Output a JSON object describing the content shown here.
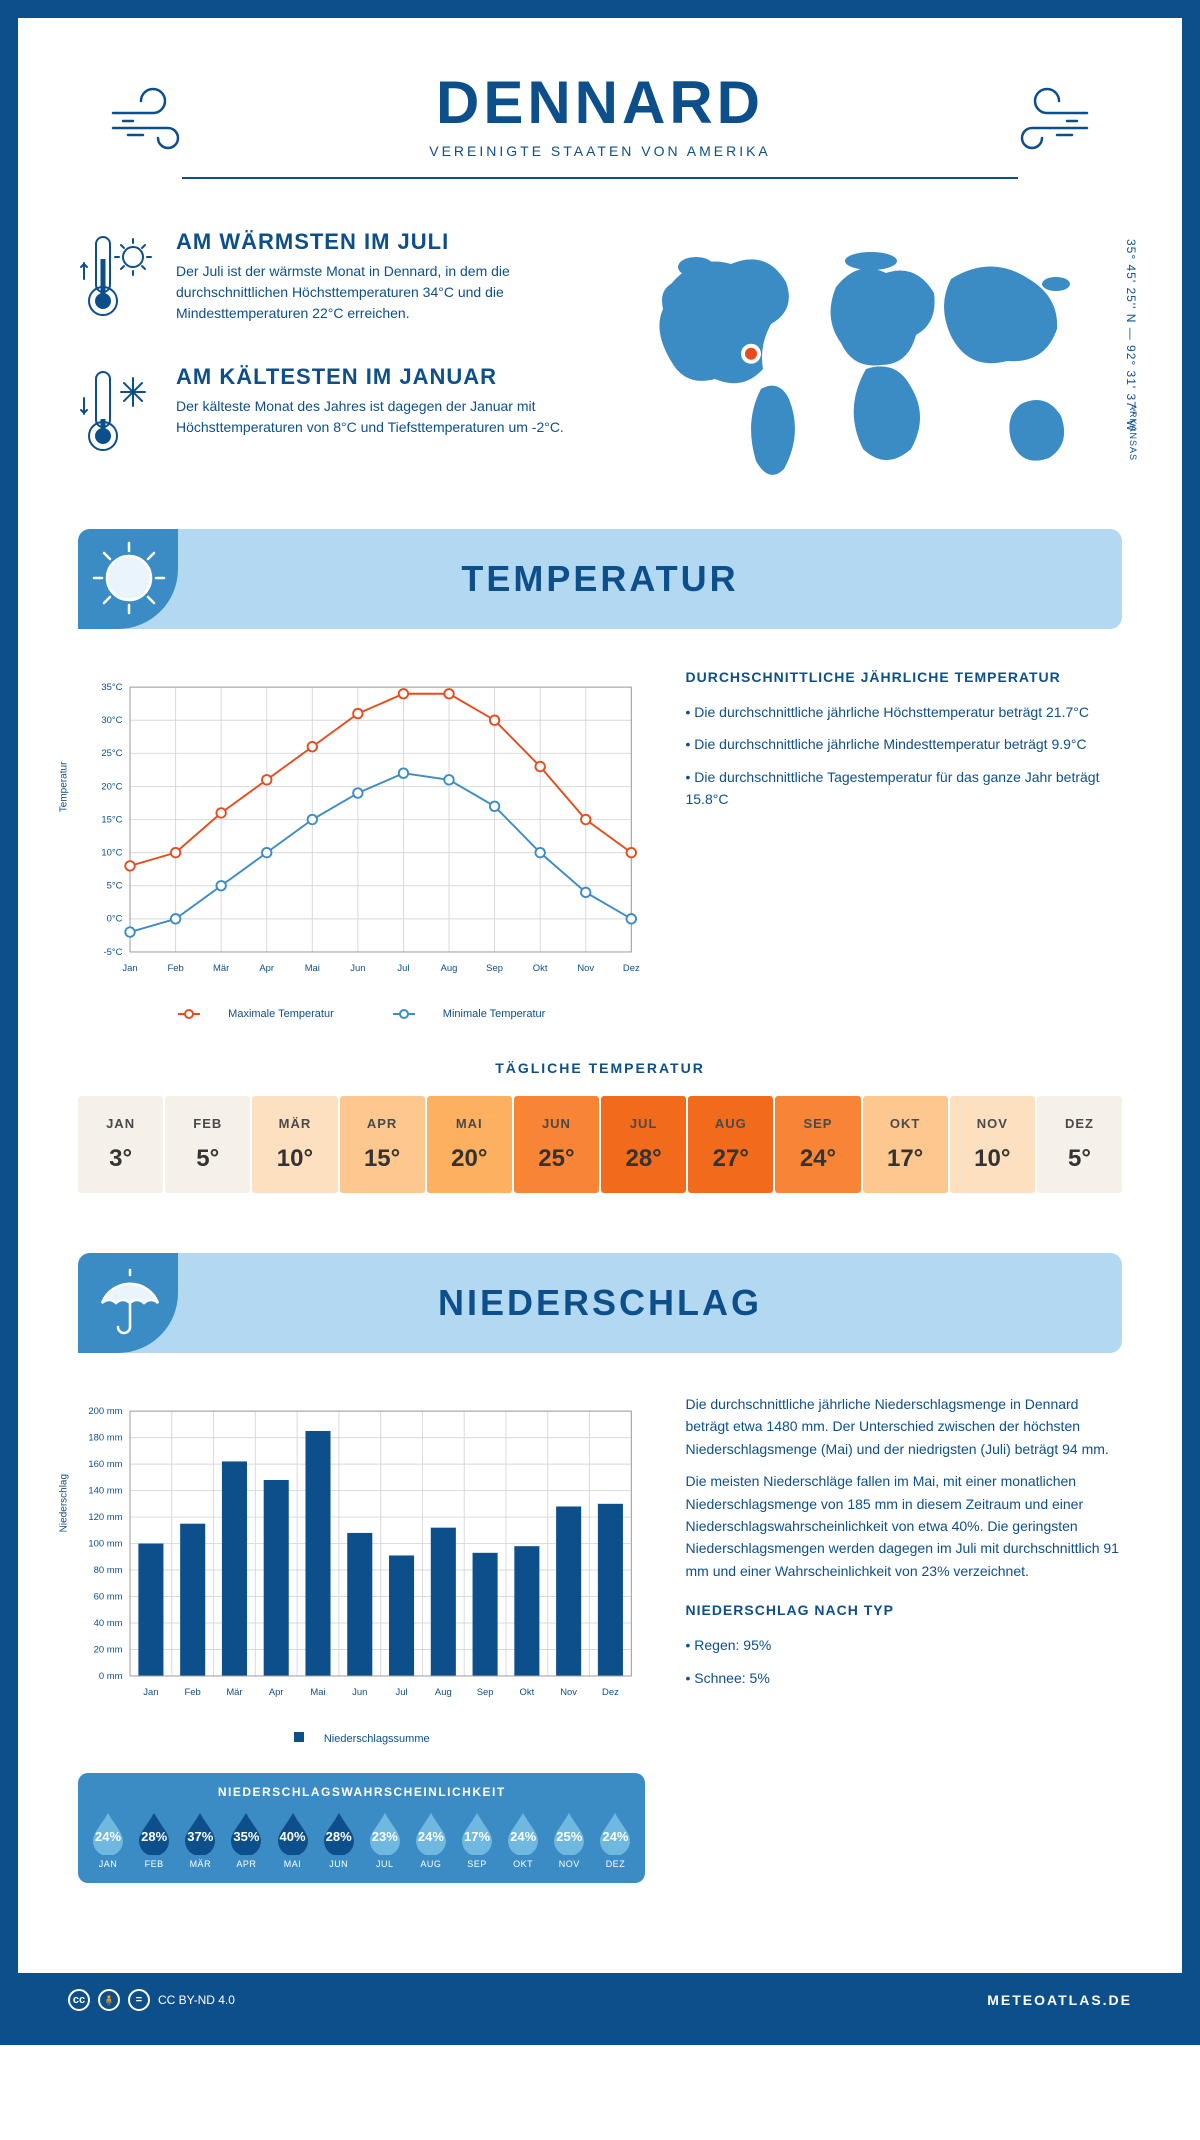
{
  "header": {
    "title": "DENNARD",
    "subtitle": "VEREINIGTE STAATEN VON AMERIKA",
    "coords": "35° 45' 25'' N — 92° 31' 37'' W",
    "state": "ARKANSAS"
  },
  "warm": {
    "title": "AM WÄRMSTEN IM JULI",
    "text": "Der Juli ist der wärmste Monat in Dennard, in dem die durchschnittlichen Höchsttemperaturen 34°C und die Mindesttemperaturen 22°C erreichen."
  },
  "cold": {
    "title": "AM KÄLTESTEN IM JANUAR",
    "text": "Der kälteste Monat des Jahres ist dagegen der Januar mit Höchsttemperaturen von 8°C und Tiefsttemperaturen um -2°C."
  },
  "map_marker": {
    "cx_pct": 26,
    "cy_pct": 48
  },
  "temp_section": {
    "banner": "TEMPERATUR",
    "facts_title": "DURCHSCHNITTLICHE JÄHRLICHE TEMPERATUR",
    "facts": [
      "• Die durchschnittliche jährliche Höchsttemperatur beträgt 21.7°C",
      "• Die durchschnittliche jährliche Mindesttemperatur beträgt 9.9°C",
      "• Die durchschnittliche Tagestemperatur für das ganze Jahr beträgt 15.8°C"
    ],
    "chart": {
      "type": "line",
      "ylabel": "Temperatur",
      "months": [
        "Jan",
        "Feb",
        "Mär",
        "Apr",
        "Mai",
        "Jun",
        "Jul",
        "Aug",
        "Sep",
        "Okt",
        "Nov",
        "Dez"
      ],
      "ylim": [
        -5,
        35
      ],
      "ytick_step": 5,
      "series": [
        {
          "name": "Maximale Temperatur",
          "color": "#e74c1e",
          "values": [
            8,
            10,
            16,
            21,
            26,
            31,
            34,
            34,
            30,
            23,
            15,
            10
          ]
        },
        {
          "name": "Minimale Temperatur",
          "color": "#3b8cc4",
          "values": [
            -2,
            0,
            5,
            10,
            15,
            19,
            22,
            21,
            17,
            10,
            4,
            0
          ]
        }
      ],
      "grid_color": "#d8d8d8",
      "background": "#ffffff",
      "marker_size": 5
    },
    "legend_max": "Maximale Temperatur",
    "legend_min": "Minimale Temperatur",
    "daily_title": "TÄGLICHE TEMPERATUR",
    "daily": {
      "months": [
        "JAN",
        "FEB",
        "MÄR",
        "APR",
        "MAI",
        "JUN",
        "JUL",
        "AUG",
        "SEP",
        "OKT",
        "NOV",
        "DEZ"
      ],
      "values": [
        "3°",
        "5°",
        "10°",
        "15°",
        "20°",
        "25°",
        "28°",
        "27°",
        "24°",
        "17°",
        "10°",
        "5°"
      ],
      "colors": [
        "#f5f0e8",
        "#f5f0e8",
        "#fde0c0",
        "#fdc890",
        "#fdb060",
        "#f88535",
        "#f26a1b",
        "#f26a1b",
        "#f88535",
        "#fdc890",
        "#fde0c0",
        "#f5f0e8"
      ]
    }
  },
  "precip_section": {
    "banner": "NIEDERSCHLAG",
    "text1": "Die durchschnittliche jährliche Niederschlagsmenge in Dennard beträgt etwa 1480 mm. Der Unterschied zwischen der höchsten Niederschlagsmenge (Mai) und der niedrigsten (Juli) beträgt 94 mm.",
    "text2": "Die meisten Niederschläge fallen im Mai, mit einer monatlichen Niederschlagsmenge von 185 mm in diesem Zeitraum und einer Niederschlagswahrscheinlichkeit von etwa 40%. Die geringsten Niederschlagsmengen werden dagegen im Juli mit durchschnittlich 91 mm und einer Wahrscheinlichkeit von 23% verzeichnet.",
    "type_title": "NIEDERSCHLAG NACH TYP",
    "type": [
      "• Regen: 95%",
      "• Schnee: 5%"
    ],
    "chart": {
      "type": "bar",
      "ylabel": "Niederschlag",
      "months": [
        "Jan",
        "Feb",
        "Mär",
        "Apr",
        "Mai",
        "Jun",
        "Jul",
        "Aug",
        "Sep",
        "Okt",
        "Nov",
        "Dez"
      ],
      "values": [
        100,
        115,
        162,
        148,
        185,
        108,
        91,
        112,
        93,
        98,
        128,
        130
      ],
      "ylim": [
        0,
        200
      ],
      "ytick_step": 20,
      "bar_color": "#0d4f8b",
      "grid_color": "#d8d8d8",
      "legend": "Niederschlagssumme"
    },
    "prob_title": "NIEDERSCHLAGSWAHRSCHEINLICHKEIT",
    "prob": {
      "months": [
        "JAN",
        "FEB",
        "MÄR",
        "APR",
        "MAI",
        "JUN",
        "JUL",
        "AUG",
        "SEP",
        "OKT",
        "NOV",
        "DEZ"
      ],
      "values": [
        "24%",
        "28%",
        "37%",
        "35%",
        "40%",
        "28%",
        "23%",
        "24%",
        "17%",
        "24%",
        "25%",
        "24%"
      ],
      "colors": [
        "#6fb8e0",
        "#0d4f8b",
        "#0d4f8b",
        "#0d4f8b",
        "#0d4f8b",
        "#0d4f8b",
        "#6fb8e0",
        "#6fb8e0",
        "#6fb8e0",
        "#6fb8e0",
        "#6fb8e0",
        "#6fb8e0"
      ]
    }
  },
  "footer": {
    "license": "CC BY-ND 4.0",
    "brand": "METEOATLAS.DE"
  }
}
